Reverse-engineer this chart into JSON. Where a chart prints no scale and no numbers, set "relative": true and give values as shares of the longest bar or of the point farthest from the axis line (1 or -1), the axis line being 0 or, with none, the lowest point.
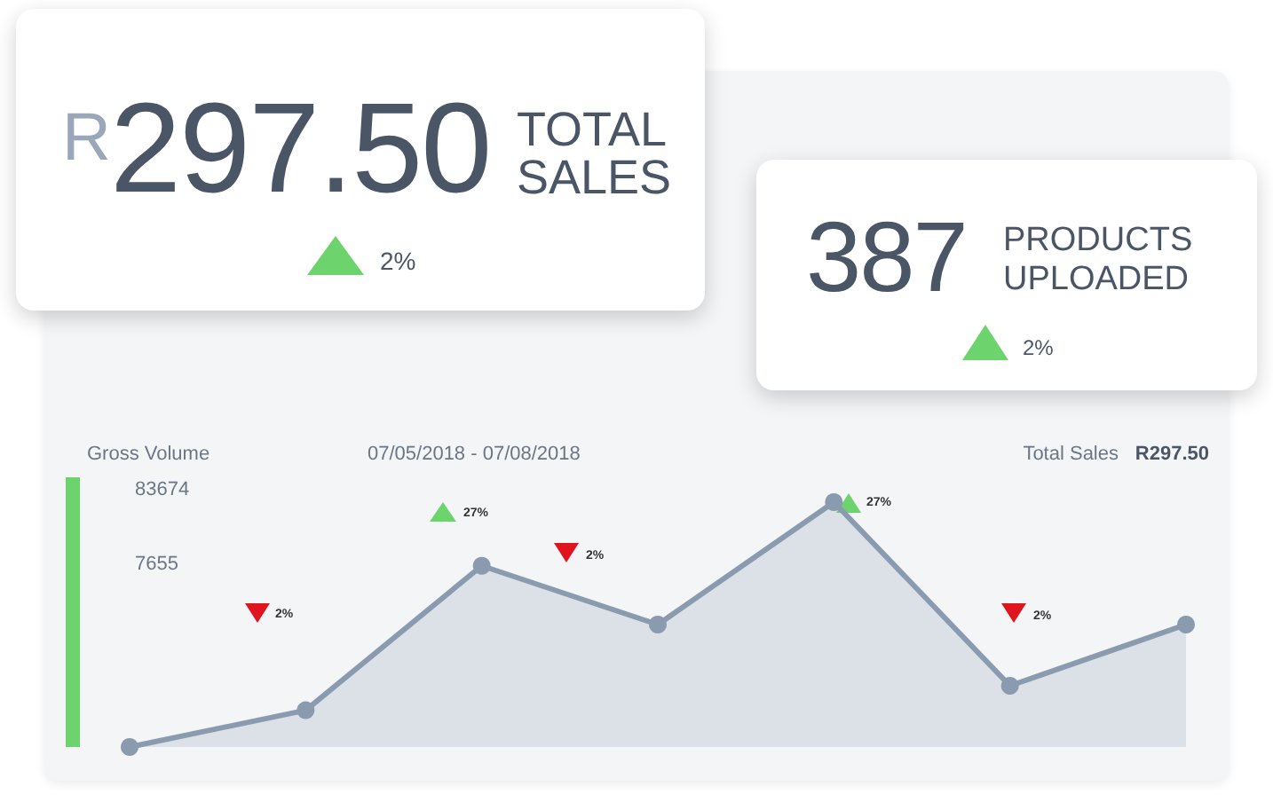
{
  "chart_data": [
    {
      "type": "other",
      "annotations": [
        "R",
        "297.50",
        "TOTAL SALES",
        "2%"
      ]
    },
    {
      "type": "other",
      "annotations": [
        "387",
        "PRODUCTS UPLOADED",
        "2%"
      ]
    },
    {
      "type": "area",
      "relative": true,
      "categories": [
        null,
        null,
        null,
        null,
        null,
        null,
        null
      ],
      "values": [
        0,
        0.15,
        0.74,
        0.5,
        1,
        0.25,
        0.5
      ],
      "color": "#8a9bb0",
      "marker": "circle",
      "ylabel": "Gross Volume",
      "subtitle": "07/05/2018 - 07/08/2018",
      "annotations": [
        "Total Sales",
        "R297.50",
        "83674",
        "7655",
        "2%",
        "27%",
        "2%",
        "27%",
        "2%"
      ]
    }
  ]
}
